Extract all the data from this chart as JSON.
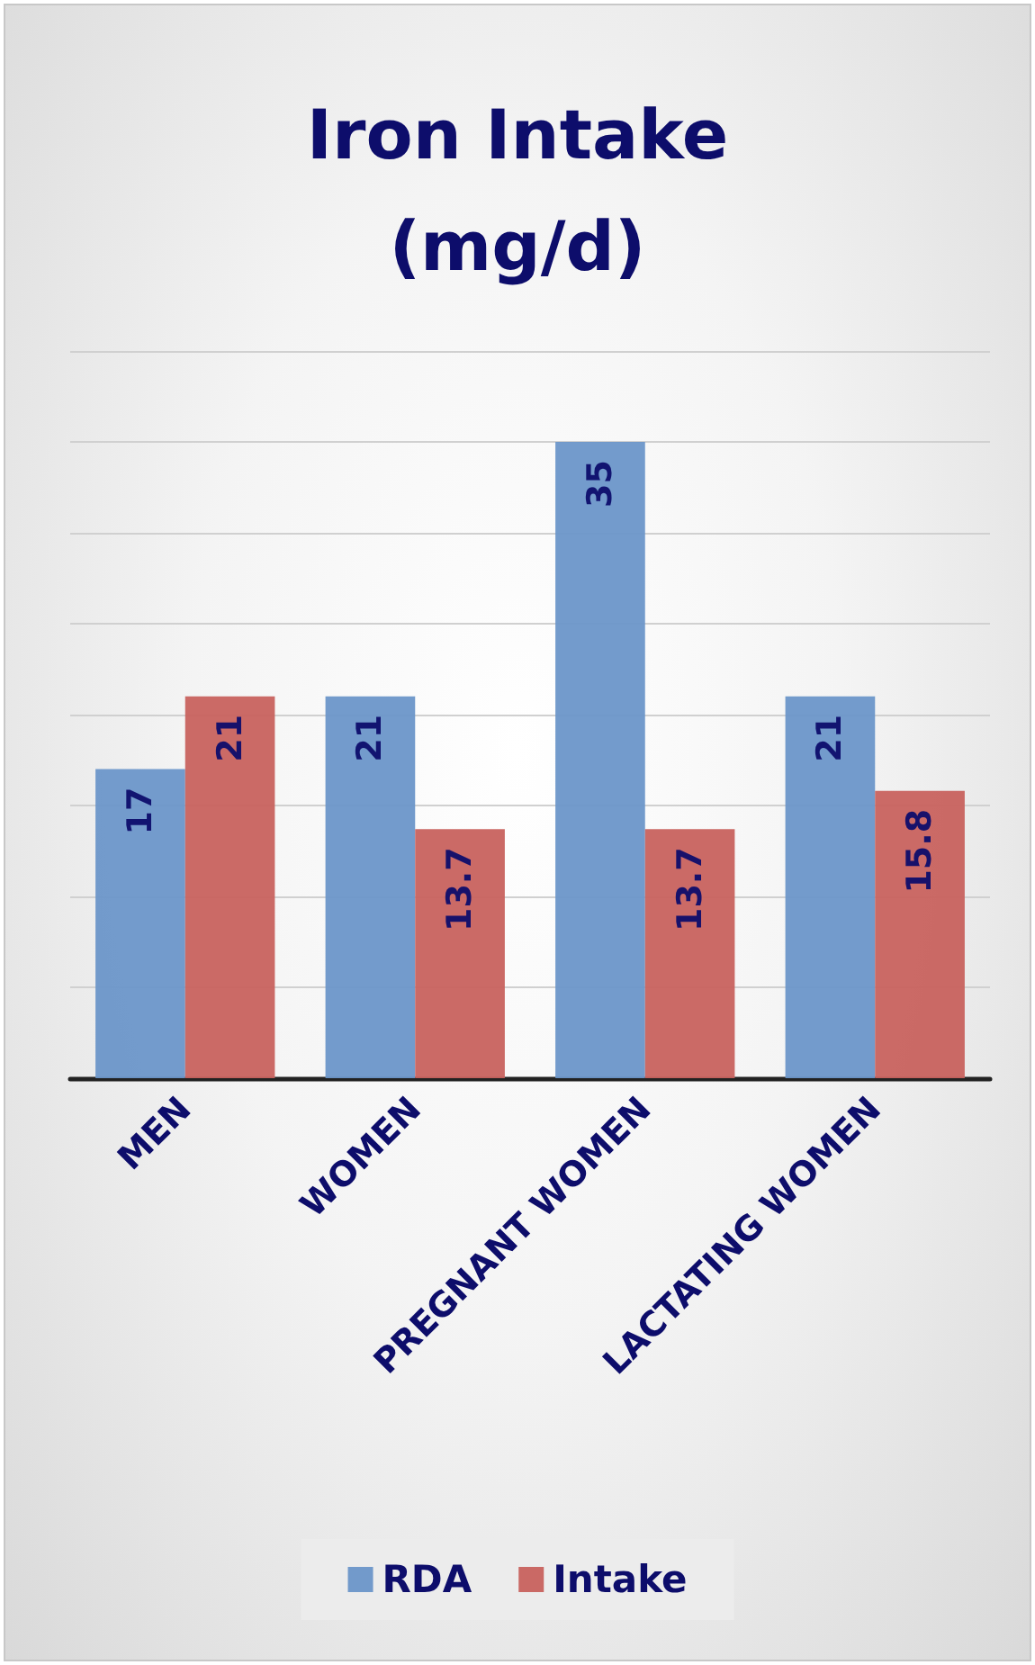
{
  "chart_data": {
    "type": "bar",
    "title": "Iron Intake\n(mg/d)",
    "categories": [
      "MEN",
      "WOMEN",
      "PREGNANT WOMEN",
      "LACTATING WOMEN"
    ],
    "series": [
      {
        "name": "RDA",
        "color": "#6b96c9",
        "values": [
          17,
          21,
          35,
          21
        ]
      },
      {
        "name": "Intake",
        "color": "#c8625e",
        "values": [
          21,
          13.7,
          13.7,
          15.8
        ]
      }
    ],
    "ylim": [
      0,
      40
    ],
    "yticks": [
      {
        "value": 0,
        "label": null
      },
      {
        "value": 5,
        "label": null
      },
      {
        "value": 10,
        "label": null
      },
      {
        "value": 15,
        "label": null
      },
      {
        "value": 20,
        "label": null
      },
      {
        "value": 25,
        "label": null
      },
      {
        "value": 30,
        "label": null
      },
      {
        "value": 35,
        "label": null
      },
      {
        "value": 40,
        "label": null
      }
    ],
    "tick_labels": "x",
    "grid": "y",
    "legend": "bottom",
    "data_labels": true
  }
}
